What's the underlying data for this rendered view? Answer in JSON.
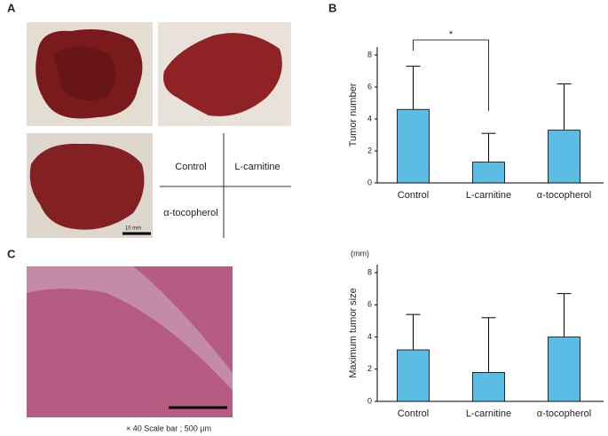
{
  "figure": {
    "panel_labels": [
      "A",
      "B",
      "C"
    ],
    "photo_labels": [
      "Control",
      "L-carnitine",
      "α-tocopherol"
    ],
    "scale_label": "10 mm",
    "caption": "× 40   Scale bar ; 500 μm"
  },
  "chart_data": [
    {
      "type": "bar",
      "ylabel": "Tumor number",
      "categories": [
        "Control",
        "L-carnitine",
        "α-tocopherol"
      ],
      "values": [
        4.6,
        1.3,
        3.3
      ],
      "errors": [
        2.7,
        1.8,
        2.9
      ],
      "color": "#5bbde4",
      "ylim": [
        0,
        8.5
      ],
      "yticks": [
        0,
        2,
        4,
        6,
        8
      ],
      "annotation": "*"
    },
    {
      "type": "bar",
      "ylabel": "Maximum tumor size",
      "unit": "(mm)",
      "categories": [
        "Control",
        "L-carnitine",
        "α-tocopherol"
      ],
      "values": [
        3.2,
        1.8,
        4.0
      ],
      "errors": [
        2.2,
        3.4,
        2.7
      ],
      "color": "#5bbde4",
      "ylim": [
        0,
        8.5
      ],
      "yticks": [
        0,
        2,
        4,
        6,
        8
      ]
    }
  ]
}
